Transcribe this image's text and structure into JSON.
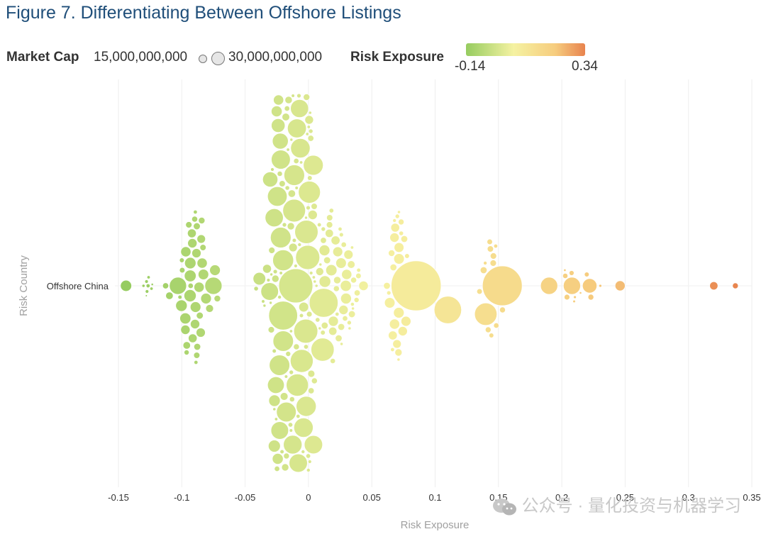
{
  "title": "Figure 7. Differentiating Between Offshore Listings",
  "legend": {
    "size_label": "Market Cap",
    "size_min_value": "15,000,000,000",
    "size_max_value": "30,000,000,000",
    "color_label": "Risk Exposure",
    "color_min_value": "-0.14",
    "color_max_value": "0.34",
    "color_stops": [
      "#96cc60",
      "#f5f2a2",
      "#f6cc7e",
      "#e8834e"
    ]
  },
  "watermark": "公众号 · 量化投资与机器学习",
  "chart_data": {
    "type": "scatter",
    "subtype": "beeswarm",
    "title": "",
    "xlabel": "Risk Exposure",
    "ylabel": "Risk Country",
    "categories": [
      "Offshore China"
    ],
    "xlim": [
      -0.15,
      0.35
    ],
    "x_ticks": [
      "-0.15",
      "-0.1",
      "-0.05",
      "0",
      "0.05",
      "0.1",
      "0.15",
      "0.2",
      "0.25",
      "0.3",
      "0.35"
    ],
    "x_tick_values": [
      -0.15,
      -0.1,
      -0.05,
      0,
      0.05,
      0.1,
      0.15,
      0.2,
      0.25,
      0.3,
      0.35
    ],
    "grid": true,
    "color_range": [
      -0.14,
      0.34
    ],
    "notable_points": [
      {
        "x": -0.144,
        "size": 1.5
      },
      {
        "x": -0.103,
        "size": 3.5
      },
      {
        "x": -0.075,
        "size": 3.5
      },
      {
        "x": -0.02,
        "size": 10
      },
      {
        "x": -0.01,
        "size": 14
      },
      {
        "x": 0.012,
        "size": 10
      },
      {
        "x": 0.085,
        "size": 30
      },
      {
        "x": 0.11,
        "size": 9
      },
      {
        "x": 0.14,
        "size": 6
      },
      {
        "x": 0.153,
        "size": 19
      },
      {
        "x": 0.19,
        "size": 3.5
      },
      {
        "x": 0.208,
        "size": 3.5
      },
      {
        "x": 0.222,
        "size": 2.5
      },
      {
        "x": 0.246,
        "size": 1.2
      },
      {
        "x": 0.32,
        "size": 0.8
      },
      {
        "x": 0.337,
        "size": 0.4
      }
    ]
  }
}
